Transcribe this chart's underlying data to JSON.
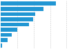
{
  "values": [
    245000,
    190000,
    155000,
    145000,
    125000,
    75000,
    50000,
    32000,
    6000
  ],
  "bar_color": "#2196d3",
  "background_color": "#ffffff",
  "grid_color": "#c8c8c8",
  "figsize": [
    1.0,
    0.71
  ],
  "dpi": 100
}
